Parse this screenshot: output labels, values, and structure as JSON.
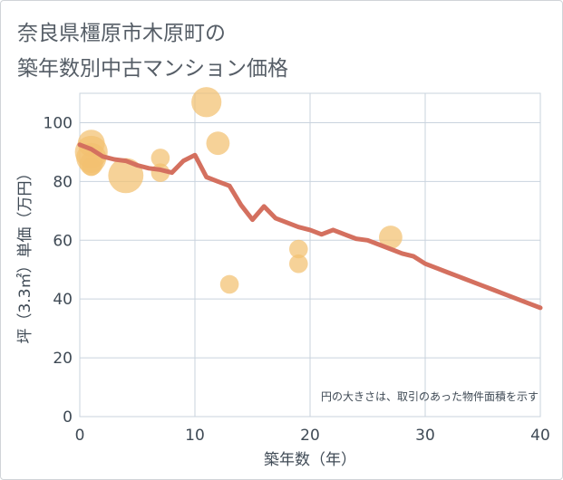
{
  "title": {
    "line1": "奈良県橿原市木原町の",
    "line2": "築年数別中古マンション価格"
  },
  "colors": {
    "line": "#d4705f",
    "bubble": "#f2c070",
    "grid": "#c9d3de",
    "text": "#3f4a55"
  },
  "chart_data": {
    "type": "scatter",
    "xlabel": "築年数（年）",
    "ylabel": "坪（3.3㎡）単価（万円）",
    "xlim": [
      0,
      40
    ],
    "ylim": [
      0,
      110
    ],
    "x_ticks": [
      0,
      10,
      20,
      30,
      40
    ],
    "y_ticks": [
      0,
      20,
      40,
      60,
      80,
      100
    ],
    "note": "円の大きさは、取引のあった物件面積を示す",
    "bubbles": [
      {
        "x": 1,
        "y": 93,
        "size": 3
      },
      {
        "x": 1,
        "y": 90,
        "size": 5
      },
      {
        "x": 1,
        "y": 88,
        "size": 4
      },
      {
        "x": 1,
        "y": 86,
        "size": 2
      },
      {
        "x": 1,
        "y": 85,
        "size": 1
      },
      {
        "x": 4,
        "y": 82,
        "size": 6
      },
      {
        "x": 7,
        "y": 88,
        "size": 1
      },
      {
        "x": 7,
        "y": 83,
        "size": 1
      },
      {
        "x": 11,
        "y": 107,
        "size": 4
      },
      {
        "x": 12,
        "y": 93,
        "size": 2
      },
      {
        "x": 13,
        "y": 45,
        "size": 1
      },
      {
        "x": 19,
        "y": 57,
        "size": 1
      },
      {
        "x": 19,
        "y": 52,
        "size": 1
      },
      {
        "x": 27,
        "y": 61,
        "size": 2
      }
    ],
    "trend": {
      "x": [
        0,
        1,
        2,
        3,
        4,
        5,
        6,
        7,
        8,
        9,
        10,
        11,
        12,
        13,
        14,
        15,
        16,
        17,
        18,
        19,
        20,
        21,
        22,
        23,
        24,
        25,
        26,
        27,
        28,
        29,
        30,
        31,
        32,
        33,
        34,
        35,
        36,
        37,
        38,
        39,
        40
      ],
      "y": [
        92.5,
        91,
        88.5,
        87.5,
        87,
        85.5,
        84.5,
        84,
        83,
        87,
        89,
        81.5,
        80,
        78.5,
        72,
        67,
        71.5,
        67.5,
        66,
        64.5,
        63.5,
        62,
        63.5,
        62,
        60.5,
        60,
        58.5,
        57,
        55.5,
        54.5,
        52,
        50.5,
        49,
        47.5,
        46,
        44.5,
        43,
        41.5,
        40,
        38.5,
        37
      ]
    }
  }
}
